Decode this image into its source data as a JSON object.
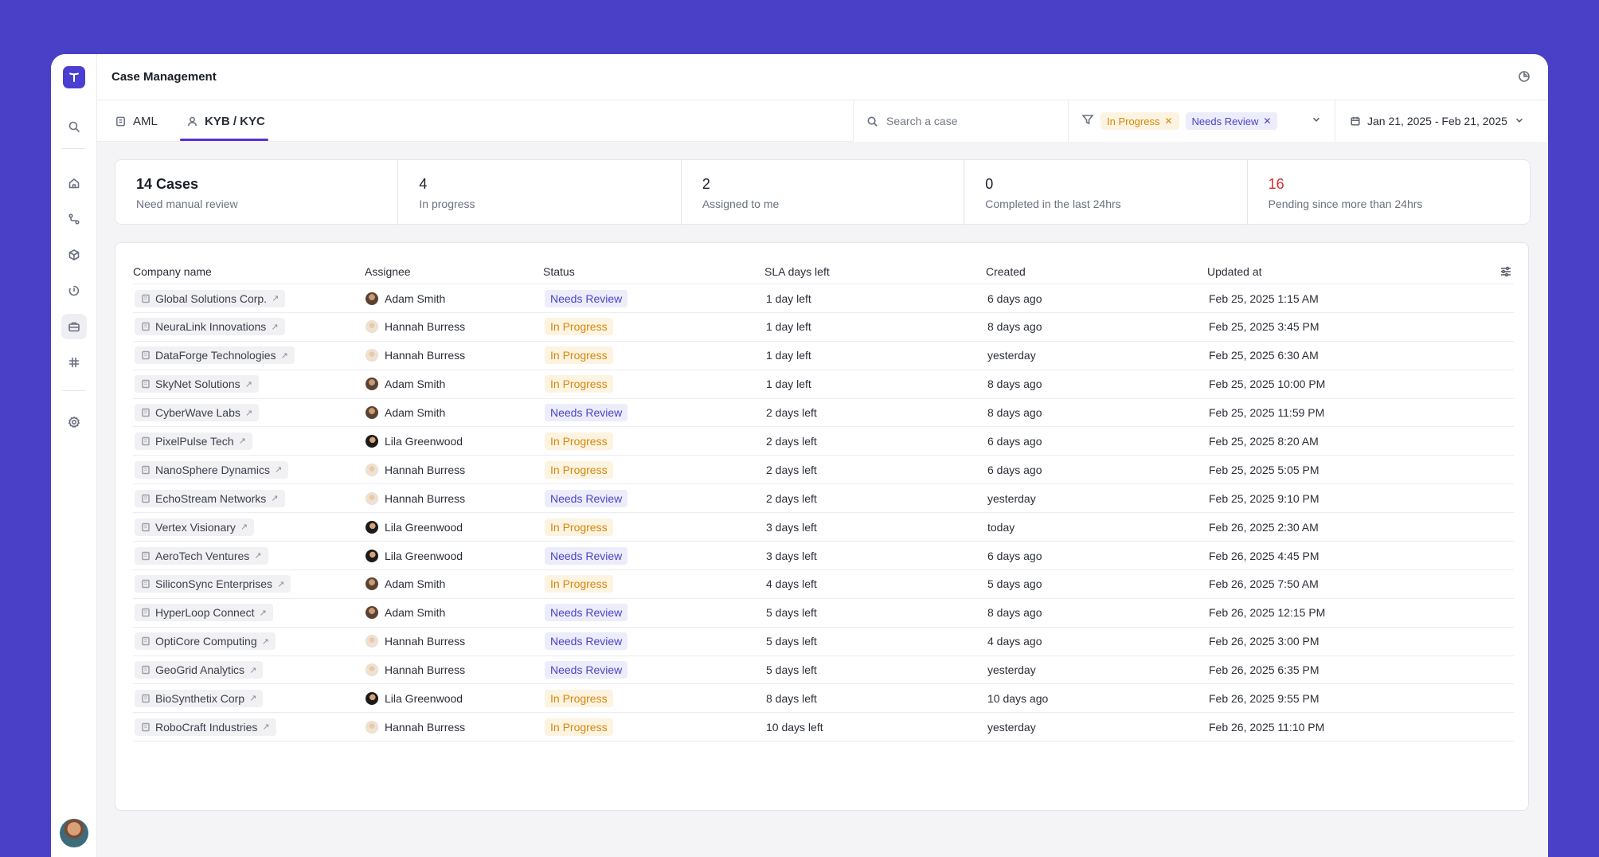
{
  "app": {
    "title": "Case Management"
  },
  "tabs": [
    {
      "label": "AML",
      "icon": "document-icon",
      "active": false
    },
    {
      "label": "KYB / KYC",
      "icon": "user-icon",
      "active": true
    }
  ],
  "search": {
    "placeholder": "Search a case",
    "value": ""
  },
  "filters": {
    "chips": [
      {
        "label": "In Progress",
        "kind": "progress"
      },
      {
        "label": "Needs Review",
        "kind": "review"
      }
    ]
  },
  "date_range": {
    "label": "Jan 21, 2025 - Feb 21, 2025"
  },
  "stats": [
    {
      "value": "14 Cases",
      "label": "Need manual review",
      "style": "bold"
    },
    {
      "value": "4",
      "label": "In progress",
      "style": ""
    },
    {
      "value": "2",
      "label": "Assigned to me",
      "style": ""
    },
    {
      "value": "0",
      "label": "Completed in the last 24hrs",
      "style": ""
    },
    {
      "value": "16",
      "label": "Pending since more than 24hrs",
      "style": "red"
    }
  ],
  "table": {
    "columns": [
      "Company name",
      "Assignee",
      "Status",
      "SLA days left",
      "Created",
      "Updated at"
    ],
    "rows": [
      {
        "company": "Global Solutions Corp.",
        "assignee": "Adam Smith",
        "avatar": "adam",
        "status": "Needs Review",
        "status_kind": "review",
        "sla": "1 day left",
        "created": "6 days ago",
        "updated": "Feb 25, 2025 1:15 AM"
      },
      {
        "company": "NeuraLink Innovations",
        "assignee": "Hannah Burress",
        "avatar": "hannah",
        "status": "In Progress",
        "status_kind": "progress",
        "sla": "1 day left",
        "created": "8 days ago",
        "updated": "Feb 25, 2025 3:45 PM"
      },
      {
        "company": "DataForge Technologies",
        "assignee": "Hannah Burress",
        "avatar": "hannah",
        "status": "In Progress",
        "status_kind": "progress",
        "sla": "1 day left",
        "created": "yesterday",
        "updated": "Feb 25, 2025 6:30 AM"
      },
      {
        "company": "SkyNet Solutions",
        "assignee": "Adam Smith",
        "avatar": "adam",
        "status": "In Progress",
        "status_kind": "progress",
        "sla": "1 day left",
        "created": "8 days ago",
        "updated": "Feb 25, 2025 10:00 PM"
      },
      {
        "company": "CyberWave Labs",
        "assignee": "Adam Smith",
        "avatar": "adam",
        "status": "Needs Review",
        "status_kind": "review",
        "sla": "2 days left",
        "created": "8 days ago",
        "updated": "Feb 25, 2025 11:59 PM"
      },
      {
        "company": "PixelPulse Tech",
        "assignee": "Lila Greenwood",
        "avatar": "lila",
        "status": "In Progress",
        "status_kind": "progress",
        "sla": "2 days left",
        "created": "6 days ago",
        "updated": "Feb 25, 2025 8:20 AM"
      },
      {
        "company": "NanoSphere Dynamics",
        "assignee": "Hannah Burress",
        "avatar": "hannah",
        "status": "In Progress",
        "status_kind": "progress",
        "sla": "2 days left",
        "created": "6 days ago",
        "updated": "Feb 25, 2025 5:05 PM"
      },
      {
        "company": "EchoStream Networks",
        "assignee": "Hannah Burress",
        "avatar": "hannah",
        "status": "Needs Review",
        "status_kind": "review",
        "sla": "2 days left",
        "created": "yesterday",
        "updated": "Feb 25, 2025 9:10 PM"
      },
      {
        "company": "Vertex Visionary",
        "assignee": "Lila Greenwood",
        "avatar": "lila",
        "status": "In Progress",
        "status_kind": "progress",
        "sla": "3 days left",
        "created": "today",
        "updated": "Feb 26, 2025 2:30 AM"
      },
      {
        "company": "AeroTech Ventures",
        "assignee": "Lila Greenwood",
        "avatar": "lila",
        "status": "Needs Review",
        "status_kind": "review",
        "sla": "3 days left",
        "created": "6 days ago",
        "updated": "Feb 26, 2025 4:45 PM"
      },
      {
        "company": "SiliconSync Enterprises",
        "assignee": "Adam Smith",
        "avatar": "adam",
        "status": "In Progress",
        "status_kind": "progress",
        "sla": "4 days left",
        "created": "5 days ago",
        "updated": "Feb 26, 2025 7:50 AM"
      },
      {
        "company": "HyperLoop Connect",
        "assignee": "Adam Smith",
        "avatar": "adam",
        "status": "Needs Review",
        "status_kind": "review",
        "sla": "5 days left",
        "created": "8 days ago",
        "updated": "Feb 26, 2025 12:15 PM"
      },
      {
        "company": "OptiCore Computing",
        "assignee": "Hannah Burress",
        "avatar": "hannah",
        "status": "Needs Review",
        "status_kind": "review",
        "sla": "5 days left",
        "created": "4 days ago",
        "updated": "Feb 26, 2025 3:00 PM"
      },
      {
        "company": "GeoGrid Analytics",
        "assignee": "Hannah Burress",
        "avatar": "hannah",
        "status": "Needs Review",
        "status_kind": "review",
        "sla": "5 days left",
        "created": "yesterday",
        "updated": "Feb 26, 2025 6:35 PM"
      },
      {
        "company": "BioSynthetix Corp",
        "assignee": "Lila Greenwood",
        "avatar": "lila",
        "status": "In Progress",
        "status_kind": "progress",
        "sla": "8 days left",
        "created": "10 days ago",
        "updated": "Feb 26, 2025 9:55 PM"
      },
      {
        "company": "RoboCraft Industries",
        "assignee": "Hannah Burress",
        "avatar": "hannah",
        "status": "In Progress",
        "status_kind": "progress",
        "sla": "10 days left",
        "created": "yesterday",
        "updated": "Feb 26, 2025 11:10 PM"
      }
    ]
  },
  "sidebar": {
    "items": [
      {
        "name": "search-icon",
        "active": false
      },
      {
        "name": "home-icon",
        "active": false
      },
      {
        "name": "workflow-icon",
        "active": false
      },
      {
        "name": "cube-icon",
        "active": false
      },
      {
        "name": "history-icon",
        "active": false
      },
      {
        "name": "briefcase-icon",
        "active": true
      },
      {
        "name": "grid-hash-icon",
        "active": false
      },
      {
        "name": "gear-icon",
        "active": false
      }
    ]
  },
  "colors": {
    "accent": "#4b3fd1",
    "background": "#4a40c8",
    "review": "#4b45c7",
    "progress": "#d4880c",
    "alert": "#d92d2d"
  }
}
